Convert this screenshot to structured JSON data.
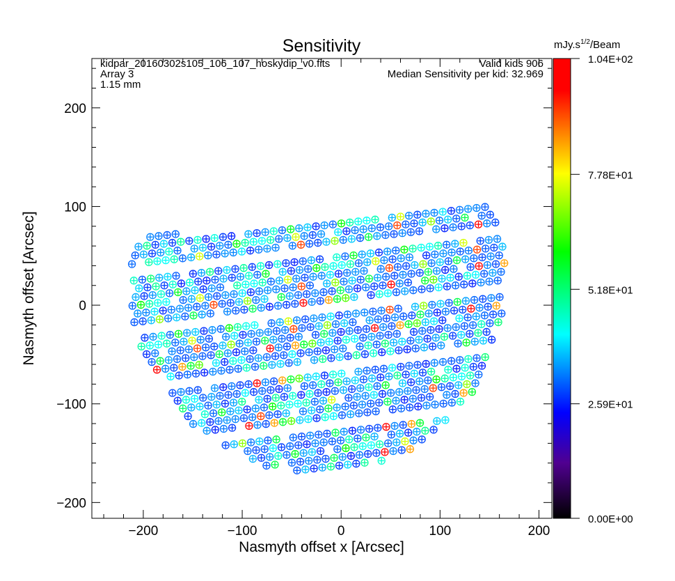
{
  "chart_data": {
    "type": "scatter",
    "title": "Sensitivity",
    "xlabel": "Nasmyth offset x [Arcsec]",
    "ylabel": "Nasmyth offset [Arcsec]",
    "xlim": [
      -252,
      213
    ],
    "ylim": [
      -216,
      250
    ],
    "xticks": [
      -200,
      -100,
      0,
      100,
      200
    ],
    "yticks": [
      -200,
      -100,
      0,
      100,
      200
    ],
    "xtick_labels": [
      "−200",
      "−100",
      "0",
      "100",
      "200"
    ],
    "ytick_labels": [
      "−200",
      "−100",
      "0",
      "100",
      "200"
    ],
    "annotations": {
      "file": "kidpar_20160302s105_106_107_hoskydip_v0.fits",
      "array": "Array 3",
      "wavelength": "1.15 mm",
      "valid_kids": "Valid kids 906",
      "median": "Median Sensitivity per kid: 32.969"
    },
    "colorbar": {
      "unit_prefix": "mJy.s",
      "unit_sup": "1/2",
      "unit_suffix": "/Beam",
      "range": [
        0,
        104
      ],
      "ticks": [
        0,
        25.9,
        51.8,
        77.8,
        104
      ],
      "tick_labels": [
        "0.00E+00",
        "2.59E+01",
        "5.18E+01",
        "7.78E+01",
        "1.04E+02"
      ],
      "colormap": "rainbow"
    },
    "focal_plane": {
      "center": [
        -23,
        21
      ],
      "radius": 191,
      "kid_spacing": 8.6,
      "row_spacing": 8.4,
      "row_tilt_slope": 0.115,
      "n_valid": 906
    },
    "values": [
      32,
      28,
      35,
      30,
      45,
      27,
      33,
      38,
      29,
      31,
      52,
      26,
      34,
      40,
      30,
      98,
      29,
      36,
      44,
      31,
      27,
      55,
      33,
      30,
      39,
      28,
      60,
      32,
      35,
      29,
      41,
      30,
      26,
      48,
      34,
      31,
      85,
      28,
      37,
      30,
      43,
      33,
      29,
      57,
      31,
      27,
      36,
      42,
      30,
      33,
      66,
      29,
      35,
      28,
      47,
      32,
      30,
      38,
      26,
      50,
      34,
      31,
      92,
      29,
      40,
      33,
      28,
      45,
      36,
      30,
      54,
      27,
      32,
      39,
      31,
      75,
      29,
      34,
      44,
      30,
      28,
      58,
      33,
      37,
      26,
      41,
      31,
      49,
      35,
      29,
      70,
      32,
      30,
      46,
      28,
      38,
      34
    ]
  }
}
